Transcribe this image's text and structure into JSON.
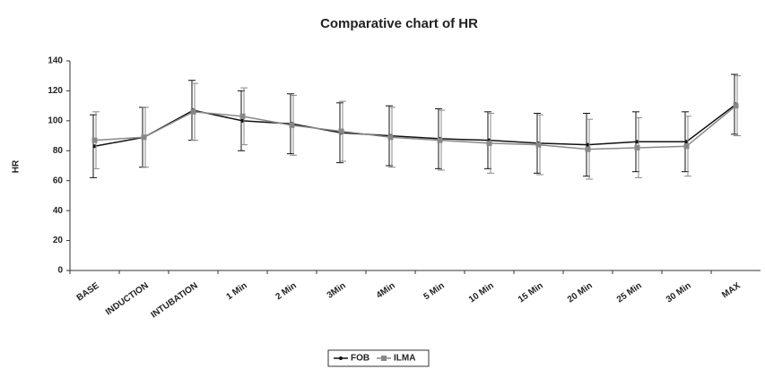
{
  "chart_data": {
    "type": "line",
    "title": "Comparative chart of HR",
    "y_label": "HR",
    "categories": [
      "BASE",
      "INDUCTION",
      "INTUBATION",
      "1 Min",
      "2 Min",
      "3Min",
      "4Min",
      "5 Min",
      "10 Min",
      "15 Min",
      "20 Min",
      "25 Min",
      "30 Min",
      "MAX"
    ],
    "series": [
      {
        "name": "FOB",
        "color": "#111111",
        "values": [
          83,
          89,
          107,
          100,
          98,
          92,
          90,
          88,
          87,
          85,
          84,
          86,
          86,
          111
        ],
        "errors": [
          21,
          20,
          20,
          20,
          20,
          20,
          20,
          20,
          19,
          20,
          21,
          20,
          20,
          20
        ]
      },
      {
        "name": "ILMA",
        "color": "#888888",
        "values": [
          87,
          89,
          106,
          103,
          97,
          93,
          89,
          87,
          85,
          84,
          81,
          82,
          83,
          110
        ],
        "errors": [
          19,
          20,
          19,
          19,
          20,
          20,
          20,
          20,
          20,
          20,
          20,
          20,
          20,
          20
        ]
      }
    ],
    "ylim": [
      0,
      140
    ],
    "yticks": [
      0,
      20,
      40,
      60,
      80,
      100,
      120,
      140
    ],
    "legend": "bottom"
  }
}
